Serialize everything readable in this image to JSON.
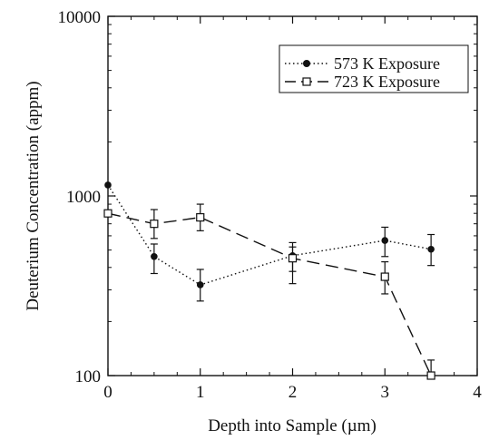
{
  "chart_data": {
    "type": "line",
    "xlabel": "Depth into Sample (µm)",
    "ylabel": "Deuterium Concentration (appm)",
    "xlim": [
      0,
      4
    ],
    "ylim": [
      100,
      10000
    ],
    "yscale": "log",
    "grid": false,
    "legend_position": "top-right",
    "x_ticks": [
      "0",
      "1",
      "2",
      "3",
      "4"
    ],
    "y_ticks": [
      "100",
      "1000",
      "10000"
    ],
    "series": [
      {
        "name": "573 K Exposure",
        "line_style": "dotted",
        "marker": "filled-circle",
        "color": "#111111",
        "x": [
          0,
          0.5,
          1,
          2,
          3,
          3.5
        ],
        "y": [
          1150,
          460,
          320,
          465,
          565,
          505
        ],
        "error_low": [
          null,
          370,
          260,
          380,
          460,
          410
        ],
        "error_high": [
          null,
          540,
          390,
          550,
          670,
          610
        ]
      },
      {
        "name": "723 K Exposure",
        "line_style": "dashed",
        "marker": "open-square",
        "color": "#111111",
        "x": [
          0,
          0.5,
          1,
          2,
          3,
          3.5
        ],
        "y": [
          800,
          700,
          760,
          450,
          355,
          100
        ],
        "error_low": [
          null,
          580,
          640,
          325,
          285,
          null
        ],
        "error_high": [
          null,
          840,
          900,
          520,
          430,
          122
        ]
      }
    ]
  }
}
